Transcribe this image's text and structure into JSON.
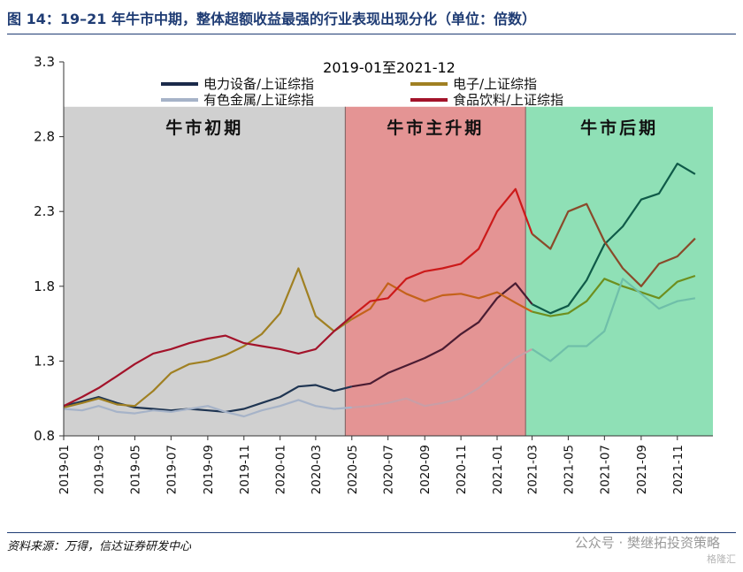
{
  "figure": {
    "title": "图 14：19–21 年牛市中期，整体超额收益最强的行业表现出现分化（单位：倍数）",
    "source": "资料来源：万得，信达证券研发中心",
    "watermark": "公众号 · 樊继拓投资策略",
    "logo": "格隆汇"
  },
  "colors": {
    "title": "#1f3c74",
    "phase1": "#d0d0d0",
    "phase2": "#e49494",
    "phase3": "#8fe0b6",
    "divider": "#8a6a6a"
  },
  "chart_data": {
    "type": "line",
    "title": "2019-01至2021-12",
    "ylim": [
      0.8,
      3.3
    ],
    "yticks": [
      "0.8",
      "1.3",
      "1.8",
      "2.3",
      "2.8",
      "3.3"
    ],
    "xlim": [
      "2019-01",
      "2021-12"
    ],
    "xticks": [
      "2019-01",
      "2019-03",
      "2019-05",
      "2019-07",
      "2019-09",
      "2019-11",
      "2020-01",
      "2020-03",
      "2020-05",
      "2020-07",
      "2020-09",
      "2020-11",
      "2021-01",
      "2021-03",
      "2021-05",
      "2021-07",
      "2021-09",
      "2021-11"
    ],
    "legend": "top",
    "phases": [
      {
        "label": "牛市初期",
        "start": "2019-01",
        "end": "2020-04-20",
        "color": "#d0d0d0"
      },
      {
        "label": "牛市主升期",
        "start": "2020-04-20",
        "end": "2021-02-18",
        "color": "#e49494"
      },
      {
        "label": "牛市后期",
        "start": "2021-02-18",
        "end": "2021-12-31",
        "color": "#8fe0b6"
      }
    ],
    "series": [
      {
        "name": "电力设备/上证综指",
        "color": "#1b2a4a",
        "segment_colors": [
          "#1f3552",
          "#4a1c32",
          "#0f5a48"
        ],
        "x": [
          "2019-01",
          "2019-02",
          "2019-03",
          "2019-04",
          "2019-05",
          "2019-06",
          "2019-07",
          "2019-08",
          "2019-09",
          "2019-10",
          "2019-11",
          "2019-12",
          "2020-01",
          "2020-02",
          "2020-03",
          "2020-04",
          "2020-05",
          "2020-06",
          "2020-07",
          "2020-08",
          "2020-09",
          "2020-10",
          "2020-11",
          "2020-12",
          "2021-01",
          "2021-02",
          "2021-03",
          "2021-04",
          "2021-05",
          "2021-06",
          "2021-07",
          "2021-08",
          "2021-09",
          "2021-10",
          "2021-11",
          "2021-12"
        ],
        "y": [
          1.0,
          1.03,
          1.06,
          1.02,
          0.99,
          0.98,
          0.97,
          0.98,
          0.97,
          0.96,
          0.98,
          1.02,
          1.06,
          1.13,
          1.14,
          1.1,
          1.13,
          1.15,
          1.22,
          1.27,
          1.32,
          1.38,
          1.48,
          1.56,
          1.72,
          1.82,
          1.68,
          1.62,
          1.67,
          1.84,
          2.08,
          2.2,
          2.38,
          2.42,
          2.62,
          2.55
        ]
      },
      {
        "name": "电子/上证综指",
        "color": "#a08022",
        "segment_colors": [
          "#a08022",
          "#c4621a",
          "#6e8f1e"
        ],
        "x": [
          "2019-01",
          "2019-02",
          "2019-03",
          "2019-04",
          "2019-05",
          "2019-06",
          "2019-07",
          "2019-08",
          "2019-09",
          "2019-10",
          "2019-11",
          "2019-12",
          "2020-01",
          "2020-02",
          "2020-03",
          "2020-04",
          "2020-05",
          "2020-06",
          "2020-07",
          "2020-08",
          "2020-09",
          "2020-10",
          "2020-11",
          "2020-12",
          "2021-01",
          "2021-02",
          "2021-03",
          "2021-04",
          "2021-05",
          "2021-06",
          "2021-07",
          "2021-08",
          "2021-09",
          "2021-10",
          "2021-11",
          "2021-12"
        ],
        "y": [
          0.99,
          1.02,
          1.05,
          1.01,
          1.0,
          1.1,
          1.22,
          1.28,
          1.3,
          1.34,
          1.4,
          1.48,
          1.62,
          1.92,
          1.6,
          1.5,
          1.58,
          1.65,
          1.82,
          1.75,
          1.7,
          1.74,
          1.75,
          1.72,
          1.76,
          1.69,
          1.63,
          1.6,
          1.62,
          1.7,
          1.85,
          1.8,
          1.76,
          1.72,
          1.83,
          1.87
        ]
      },
      {
        "name": "有色金属/上证综指",
        "color": "#a6b3c8",
        "segment_colors": [
          "#a6b3c8",
          "#c99ea6",
          "#6fbfa9"
        ],
        "x": [
          "2019-01",
          "2019-02",
          "2019-03",
          "2019-04",
          "2019-05",
          "2019-06",
          "2019-07",
          "2019-08",
          "2019-09",
          "2019-10",
          "2019-11",
          "2019-12",
          "2020-01",
          "2020-02",
          "2020-03",
          "2020-04",
          "2020-05",
          "2020-06",
          "2020-07",
          "2020-08",
          "2020-09",
          "2020-10",
          "2020-11",
          "2020-12",
          "2021-01",
          "2021-02",
          "2021-03",
          "2021-04",
          "2021-05",
          "2021-06",
          "2021-07",
          "2021-08",
          "2021-09",
          "2021-10",
          "2021-11",
          "2021-12"
        ],
        "y": [
          0.98,
          0.97,
          1.0,
          0.96,
          0.95,
          0.97,
          0.96,
          0.98,
          1.0,
          0.96,
          0.93,
          0.97,
          1.0,
          1.04,
          1.0,
          0.98,
          0.99,
          1.0,
          1.02,
          1.05,
          1.0,
          1.02,
          1.05,
          1.12,
          1.22,
          1.32,
          1.38,
          1.3,
          1.4,
          1.4,
          1.5,
          1.85,
          1.75,
          1.65,
          1.7,
          1.72
        ]
      },
      {
        "name": "食品饮料/上证综指",
        "color": "#a3132a",
        "segment_colors": [
          "#a3132a",
          "#cc1a1a",
          "#8a4a2a"
        ],
        "x": [
          "2019-01",
          "2019-02",
          "2019-03",
          "2019-04",
          "2019-05",
          "2019-06",
          "2019-07",
          "2019-08",
          "2019-09",
          "2019-10",
          "2019-11",
          "2019-12",
          "2020-01",
          "2020-02",
          "2020-03",
          "2020-04",
          "2020-05",
          "2020-06",
          "2020-07",
          "2020-08",
          "2020-09",
          "2020-10",
          "2020-11",
          "2020-12",
          "2021-01",
          "2021-02",
          "2021-03",
          "2021-04",
          "2021-05",
          "2021-06",
          "2021-07",
          "2021-08",
          "2021-09",
          "2021-10",
          "2021-11",
          "2021-12"
        ],
        "y": [
          1.0,
          1.06,
          1.12,
          1.2,
          1.28,
          1.35,
          1.38,
          1.42,
          1.45,
          1.47,
          1.42,
          1.4,
          1.38,
          1.35,
          1.38,
          1.5,
          1.6,
          1.7,
          1.72,
          1.85,
          1.9,
          1.92,
          1.95,
          2.05,
          2.3,
          2.45,
          2.15,
          2.05,
          2.3,
          2.35,
          2.1,
          1.92,
          1.8,
          1.95,
          2.0,
          2.12
        ]
      }
    ],
    "phase_labels": [
      "牛市初期",
      "牛市主升期",
      "牛市后期"
    ]
  }
}
